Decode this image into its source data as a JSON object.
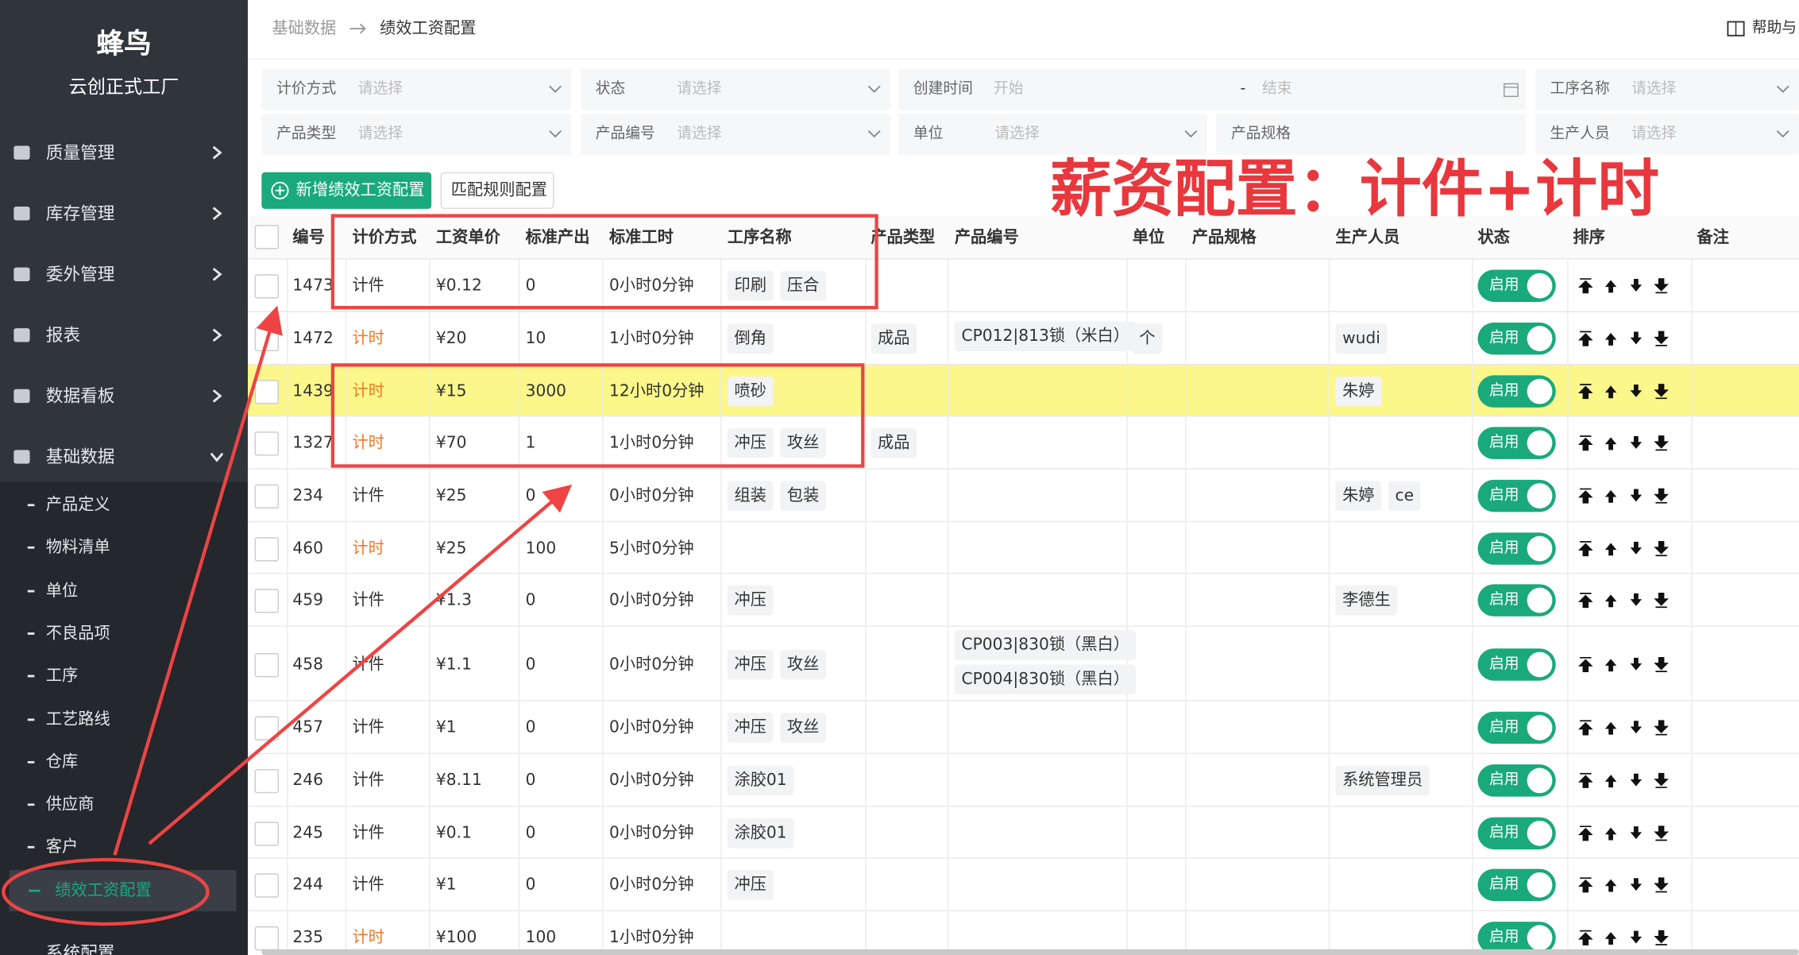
{
  "sidebar": {
    "logo": "蜂鸟",
    "company": "云创正式工厂",
    "menu": [
      {
        "label": "质量管理"
      },
      {
        "label": "库存管理"
      },
      {
        "label": "委外管理"
      },
      {
        "label": "报表"
      },
      {
        "label": "数据看板"
      },
      {
        "label": "基础数据",
        "expanded": true
      }
    ],
    "submenu": [
      {
        "label": "产品定义"
      },
      {
        "label": "物料清单"
      },
      {
        "label": "单位"
      },
      {
        "label": "不良品项"
      },
      {
        "label": "工序"
      },
      {
        "label": "工艺路线"
      },
      {
        "label": "仓库"
      },
      {
        "label": "供应商"
      },
      {
        "label": "客户"
      },
      {
        "label": "绩效工资配置",
        "active": true
      }
    ],
    "bottom": "系统配置"
  },
  "header": {
    "breadcrumb": [
      "基础数据",
      "绩效工资配置"
    ],
    "help": "帮助与"
  },
  "filters": [
    [
      {
        "label": "计价方式",
        "placeholder": "请选择"
      },
      {
        "label": "状态",
        "placeholder": "请选择"
      },
      {
        "label": "创建时间",
        "start": "开始",
        "separator": "-",
        "end": "结束"
      },
      {
        "label": "工序名称",
        "placeholder": "请选择"
      }
    ],
    [
      {
        "label": "产品类型",
        "placeholder": "请选择"
      },
      {
        "label": "产品编号",
        "placeholder": "请选择"
      },
      {
        "label": "单位",
        "placeholder": "请选择"
      },
      {
        "label": "产品规格"
      },
      {
        "label": "生产人员",
        "placeholder": "请选择"
      }
    ]
  ],
  "buttons": [
    "新增绩效工资配置",
    "匹配规则配置"
  ],
  "annotation": "薪资配置：计件+计时",
  "table": {
    "columns": [
      "编号",
      "计价方式",
      "工资单价",
      "标准产出",
      "标准工时",
      "工序名称",
      "产品类型",
      "产品编号",
      "单位",
      "产品规格",
      "生产人员",
      "状态",
      "排序",
      "备注"
    ],
    "rows": [
      {
        "id": 1473,
        "method": "计件",
        "price": "¥0.12",
        "output": 0,
        "hours": "0小时0分钟",
        "processes": [
          "印刷",
          "压合"
        ],
        "status": "启用"
      },
      {
        "id": 1472,
        "method": "计时",
        "method_color": "#f07a28",
        "price": "¥20",
        "output": 10,
        "hours": "1小时0分钟",
        "processes": [
          "倒角"
        ],
        "product_type": "成品",
        "codes": [
          "CP012|813锁（米白）"
        ],
        "unit": "个",
        "staff": [
          "wudi"
        ],
        "status": "启用"
      },
      {
        "id": 1439,
        "method": "计时",
        "method_color": "#f07a28",
        "price": "¥15",
        "output": 3000,
        "hours": "12小时0分钟",
        "processes": [
          "喷砂"
        ],
        "staff": [
          "朱婷"
        ],
        "status": "启用",
        "highlight": "#fbf78a"
      },
      {
        "id": 1327,
        "method": "计时",
        "method_color": "#f07a28",
        "price": "¥70",
        "output": 1,
        "hours": "1小时0分钟",
        "processes": [
          "冲压",
          "攻丝"
        ],
        "product_type": "成品",
        "status": "启用"
      },
      {
        "id": 234,
        "method": "计件",
        "price": "¥25",
        "output": 0,
        "hours": "0小时0分钟",
        "processes": [
          "组装",
          "包装"
        ],
        "staff": [
          "朱婷",
          "ce"
        ],
        "status": "启用"
      },
      {
        "id": 460,
        "method": "计时",
        "method_color": "#f07a28",
        "price": "¥25",
        "output": 100,
        "hours": "5小时0分钟",
        "status": "启用"
      },
      {
        "id": 459,
        "method": "计件",
        "price": "¥1.3",
        "output": 0,
        "hours": "0小时0分钟",
        "processes": [
          "冲压"
        ],
        "staff": [
          "李德生"
        ],
        "status": "启用"
      },
      {
        "id": 458,
        "method": "计件",
        "price": "¥1.1",
        "output": 0,
        "hours": "0小时0分钟",
        "processes": [
          "冲压",
          "攻丝"
        ],
        "codes": [
          "CP003|830锁（黑白）",
          "CP004|830锁（黑白）"
        ],
        "status": "启用"
      },
      {
        "id": 457,
        "method": "计件",
        "price": "¥1",
        "output": 0,
        "hours": "0小时0分钟",
        "processes": [
          "冲压",
          "攻丝"
        ],
        "status": "启用"
      },
      {
        "id": 246,
        "method": "计件",
        "price": "¥8.11",
        "output": 0,
        "hours": "0小时0分钟",
        "processes": [
          "涂胶01"
        ],
        "staff": [
          "系统管理员"
        ],
        "status": "启用"
      },
      {
        "id": 245,
        "method": "计件",
        "price": "¥0.1",
        "output": 0,
        "hours": "0小时0分钟",
        "processes": [
          "涂胶01"
        ],
        "status": "启用"
      },
      {
        "id": 244,
        "method": "计件",
        "price": "¥1",
        "output": 0,
        "hours": "0小时0分钟",
        "processes": [
          "冲压"
        ],
        "status": "启用"
      },
      {
        "id": 235,
        "method": "计时",
        "method_color": "#f07a28",
        "price": "¥100",
        "output": 100,
        "hours": "1小时0分钟",
        "status": "启用"
      }
    ]
  }
}
